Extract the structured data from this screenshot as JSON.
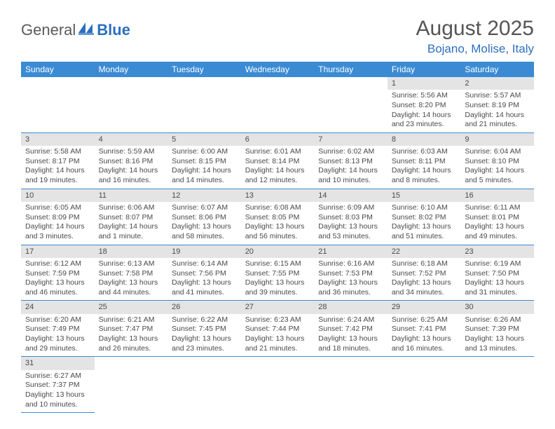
{
  "logo": {
    "text1": "General",
    "text2": "Blue"
  },
  "title": "August 2025",
  "location": "Bojano, Molise, Italy",
  "colors": {
    "headerBg": "#3b8bd4",
    "accent": "#2b6fbf",
    "daynumBg": "#e4e4e4"
  },
  "weekdays": [
    "Sunday",
    "Monday",
    "Tuesday",
    "Wednesday",
    "Thursday",
    "Friday",
    "Saturday"
  ],
  "weeks": [
    [
      null,
      null,
      null,
      null,
      null,
      {
        "n": "1",
        "sr": "5:56 AM",
        "ss": "8:20 PM",
        "dl": "14 hours and 23 minutes."
      },
      {
        "n": "2",
        "sr": "5:57 AM",
        "ss": "8:19 PM",
        "dl": "14 hours and 21 minutes."
      }
    ],
    [
      {
        "n": "3",
        "sr": "5:58 AM",
        "ss": "8:17 PM",
        "dl": "14 hours and 19 minutes."
      },
      {
        "n": "4",
        "sr": "5:59 AM",
        "ss": "8:16 PM",
        "dl": "14 hours and 16 minutes."
      },
      {
        "n": "5",
        "sr": "6:00 AM",
        "ss": "8:15 PM",
        "dl": "14 hours and 14 minutes."
      },
      {
        "n": "6",
        "sr": "6:01 AM",
        "ss": "8:14 PM",
        "dl": "14 hours and 12 minutes."
      },
      {
        "n": "7",
        "sr": "6:02 AM",
        "ss": "8:13 PM",
        "dl": "14 hours and 10 minutes."
      },
      {
        "n": "8",
        "sr": "6:03 AM",
        "ss": "8:11 PM",
        "dl": "14 hours and 8 minutes."
      },
      {
        "n": "9",
        "sr": "6:04 AM",
        "ss": "8:10 PM",
        "dl": "14 hours and 5 minutes."
      }
    ],
    [
      {
        "n": "10",
        "sr": "6:05 AM",
        "ss": "8:09 PM",
        "dl": "14 hours and 3 minutes."
      },
      {
        "n": "11",
        "sr": "6:06 AM",
        "ss": "8:07 PM",
        "dl": "14 hours and 1 minute."
      },
      {
        "n": "12",
        "sr": "6:07 AM",
        "ss": "8:06 PM",
        "dl": "13 hours and 58 minutes."
      },
      {
        "n": "13",
        "sr": "6:08 AM",
        "ss": "8:05 PM",
        "dl": "13 hours and 56 minutes."
      },
      {
        "n": "14",
        "sr": "6:09 AM",
        "ss": "8:03 PM",
        "dl": "13 hours and 53 minutes."
      },
      {
        "n": "15",
        "sr": "6:10 AM",
        "ss": "8:02 PM",
        "dl": "13 hours and 51 minutes."
      },
      {
        "n": "16",
        "sr": "6:11 AM",
        "ss": "8:01 PM",
        "dl": "13 hours and 49 minutes."
      }
    ],
    [
      {
        "n": "17",
        "sr": "6:12 AM",
        "ss": "7:59 PM",
        "dl": "13 hours and 46 minutes."
      },
      {
        "n": "18",
        "sr": "6:13 AM",
        "ss": "7:58 PM",
        "dl": "13 hours and 44 minutes."
      },
      {
        "n": "19",
        "sr": "6:14 AM",
        "ss": "7:56 PM",
        "dl": "13 hours and 41 minutes."
      },
      {
        "n": "20",
        "sr": "6:15 AM",
        "ss": "7:55 PM",
        "dl": "13 hours and 39 minutes."
      },
      {
        "n": "21",
        "sr": "6:16 AM",
        "ss": "7:53 PM",
        "dl": "13 hours and 36 minutes."
      },
      {
        "n": "22",
        "sr": "6:18 AM",
        "ss": "7:52 PM",
        "dl": "13 hours and 34 minutes."
      },
      {
        "n": "23",
        "sr": "6:19 AM",
        "ss": "7:50 PM",
        "dl": "13 hours and 31 minutes."
      }
    ],
    [
      {
        "n": "24",
        "sr": "6:20 AM",
        "ss": "7:49 PM",
        "dl": "13 hours and 29 minutes."
      },
      {
        "n": "25",
        "sr": "6:21 AM",
        "ss": "7:47 PM",
        "dl": "13 hours and 26 minutes."
      },
      {
        "n": "26",
        "sr": "6:22 AM",
        "ss": "7:45 PM",
        "dl": "13 hours and 23 minutes."
      },
      {
        "n": "27",
        "sr": "6:23 AM",
        "ss": "7:44 PM",
        "dl": "13 hours and 21 minutes."
      },
      {
        "n": "28",
        "sr": "6:24 AM",
        "ss": "7:42 PM",
        "dl": "13 hours and 18 minutes."
      },
      {
        "n": "29",
        "sr": "6:25 AM",
        "ss": "7:41 PM",
        "dl": "13 hours and 16 minutes."
      },
      {
        "n": "30",
        "sr": "6:26 AM",
        "ss": "7:39 PM",
        "dl": "13 hours and 13 minutes."
      }
    ],
    [
      {
        "n": "31",
        "sr": "6:27 AM",
        "ss": "7:37 PM",
        "dl": "13 hours and 10 minutes."
      },
      null,
      null,
      null,
      null,
      null,
      null
    ]
  ],
  "labels": {
    "sunrise": "Sunrise: ",
    "sunset": "Sunset: ",
    "daylight": "Daylight: "
  }
}
